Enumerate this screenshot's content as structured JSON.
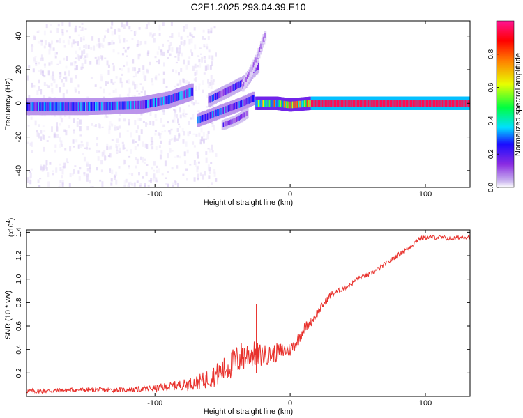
{
  "figure_title": "C2E1.2025.293.04.39.E10",
  "colors": {
    "snr_line": "#e8312c",
    "axis": "#000000",
    "background": "#ffffff"
  },
  "chart_data": [
    {
      "type": "heatmap",
      "title": "C2E1.2025.293.04.39.E10",
      "xlabel": "Height of straight line (km)",
      "ylabel": "Frequency (Hz)",
      "xlim": [
        -195,
        133
      ],
      "ylim": [
        -50,
        49
      ],
      "xticks": [
        -100,
        0,
        100
      ],
      "xtick_labels": [
        "-100",
        "0",
        "100"
      ],
      "yticks": [
        -40,
        -20,
        0,
        20,
        40
      ],
      "ytick_labels": [
        "-40",
        "-20",
        "0",
        "20",
        "40"
      ],
      "colorbar": {
        "label": "Normalized spectral amplitude",
        "range": [
          0,
          1
        ],
        "ticks": [
          0.0,
          0.2,
          0.4,
          0.6,
          0.8
        ],
        "tick_labels": [
          "0.0",
          "0.2",
          "0.4",
          "0.6",
          "0.8"
        ],
        "colormap": [
          "#ffffff",
          "#c8b2ee",
          "#8a2be2",
          "#1a0cff",
          "#00e0ff",
          "#00ff40",
          "#e8ff00",
          "#ff7f00",
          "#ff0000",
          "#ff1493"
        ]
      },
      "ridges": [
        {
          "name": "main-band",
          "points": [
            [
              -195,
              -2
            ],
            [
              -150,
              -2
            ],
            [
              -110,
              -1
            ],
            [
              -90,
              2
            ],
            [
              -72,
              7
            ]
          ],
          "width_hz": 5,
          "amplitude": 0.3
        },
        {
          "name": "upper-branch",
          "points": [
            [
              -60,
              2
            ],
            [
              -45,
              8
            ],
            [
              -33,
              13
            ],
            [
              -28,
              19
            ],
            [
              -24,
              22
            ]
          ],
          "width_hz": 4,
          "amplitude": 0.25
        },
        {
          "name": "steep-branch",
          "points": [
            [
              -35,
              10
            ],
            [
              -25,
              26
            ],
            [
              -18,
              42
            ]
          ],
          "width_hz": 3,
          "amplitude": 0.15
        },
        {
          "name": "lower-branch",
          "points": [
            [
              -68,
              -10
            ],
            [
              -55,
              -6
            ],
            [
              -45,
              -3
            ],
            [
              -35,
              0
            ],
            [
              -27,
              3
            ]
          ],
          "width_hz": 4,
          "amplitude": 0.3
        },
        {
          "name": "inner-lower",
          "points": [
            [
              -50,
              -13
            ],
            [
              -40,
              -10
            ],
            [
              -32,
              -6
            ]
          ],
          "width_hz": 3,
          "amplitude": 0.2
        },
        {
          "name": "mid-band",
          "points": [
            [
              -25,
              0
            ],
            [
              -10,
              0
            ],
            [
              0,
              -1
            ],
            [
              15,
              0
            ]
          ],
          "width_hz": 4,
          "amplitude": 0.55
        },
        {
          "name": "steady-tone",
          "points": [
            [
              16,
              0
            ],
            [
              133,
              0
            ]
          ],
          "width_hz": 4,
          "amplitude": 0.95
        }
      ]
    },
    {
      "type": "line",
      "xlabel": "Height of straight line (km)",
      "ylabel": "SNR (10 * v/v)",
      "y_multiplier": "(x10",
      "y_multiplier_exp": "4",
      "y_multiplier_close": ")",
      "xlim": [
        -195,
        133
      ],
      "ylim": [
        0,
        1.42
      ],
      "xticks": [
        -100,
        0,
        100
      ],
      "xtick_labels": [
        "-100",
        "0",
        "100"
      ],
      "yticks": [
        0.2,
        0.4,
        0.6,
        0.8,
        1.0,
        1.2,
        1.4
      ],
      "ytick_labels": [
        "0.2",
        "0.4",
        "0.6",
        "0.8",
        "1.0",
        "1.2",
        "1.4"
      ],
      "series": [
        {
          "name": "SNR",
          "x": [
            -195,
            -180,
            -160,
            -140,
            -120,
            -100,
            -85,
            -75,
            -65,
            -55,
            -45,
            -38,
            -30,
            -22,
            -15,
            -10,
            -5,
            0,
            5,
            10,
            15,
            20,
            25,
            30,
            35,
            40,
            45,
            50,
            55,
            60,
            65,
            70,
            75,
            80,
            85,
            90,
            95,
            100,
            110,
            120,
            133
          ],
          "values": [
            0.04,
            0.04,
            0.05,
            0.05,
            0.05,
            0.06,
            0.08,
            0.09,
            0.11,
            0.15,
            0.22,
            0.28,
            0.33,
            0.32,
            0.33,
            0.35,
            0.37,
            0.38,
            0.45,
            0.56,
            0.62,
            0.7,
            0.78,
            0.86,
            0.89,
            0.92,
            0.95,
            1.0,
            1.02,
            1.04,
            1.08,
            1.12,
            1.16,
            1.2,
            1.24,
            1.28,
            1.34,
            1.35,
            1.35,
            1.34,
            1.36
          ],
          "noise_amplitude": [
            0.02,
            0.02,
            0.02,
            0.02,
            0.02,
            0.03,
            0.04,
            0.05,
            0.07,
            0.1,
            0.12,
            0.14,
            0.12,
            0.1,
            0.08,
            0.08,
            0.07,
            0.06,
            0.06,
            0.05,
            0.04,
            0.04,
            0.03,
            0.03,
            0.02,
            0.02,
            0.02,
            0.02,
            0.02,
            0.02,
            0.02,
            0.02,
            0.02,
            0.02,
            0.02,
            0.02,
            0.02,
            0.02,
            0.02,
            0.02,
            0.02
          ]
        }
      ],
      "annotations": [
        {
          "x": -25,
          "value": 0.79,
          "label": "spike"
        }
      ]
    }
  ]
}
